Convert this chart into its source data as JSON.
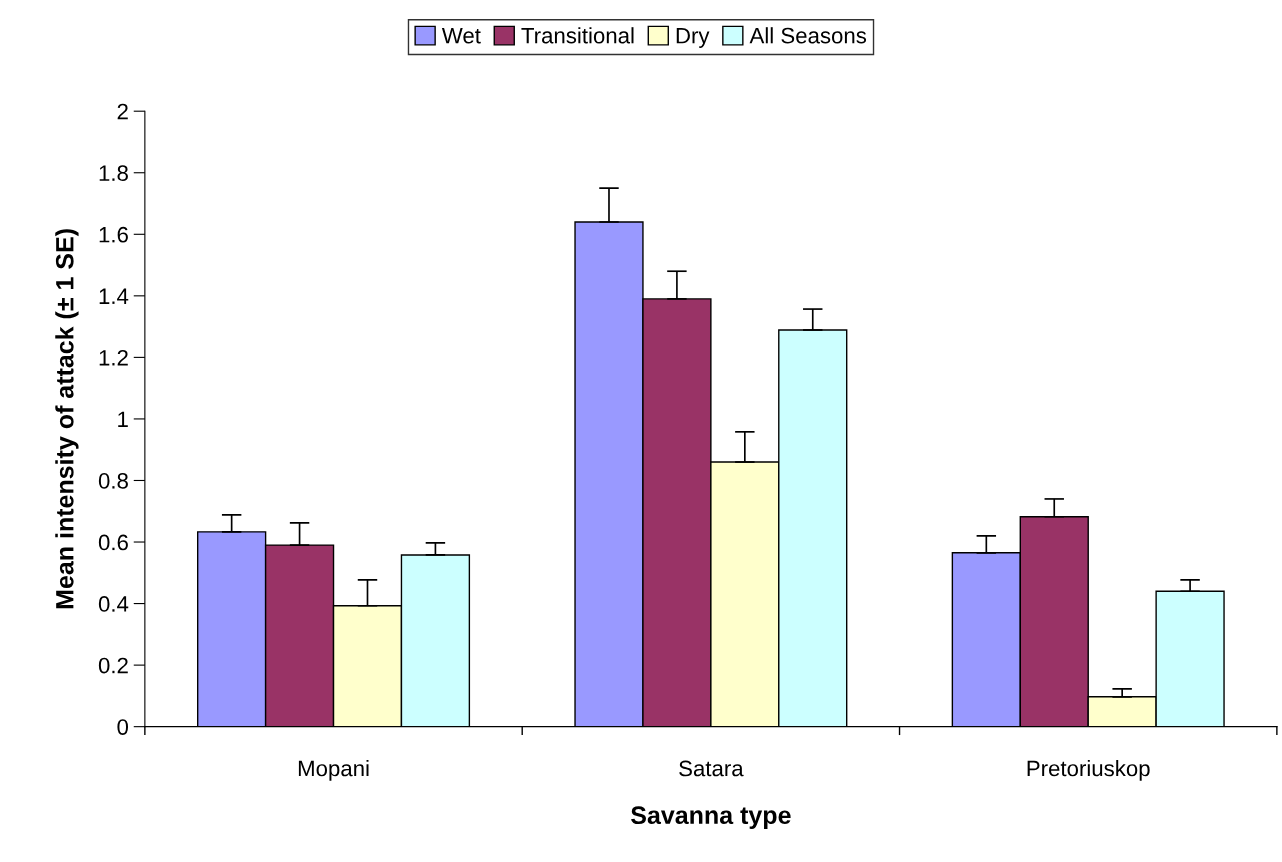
{
  "chart_data": {
    "type": "bar",
    "xlabel": "Savanna type",
    "ylabel": "Mean intensity of attack (± 1 SE)",
    "categories": [
      "Mopani",
      "Satara",
      "Pretoriuskop"
    ],
    "series": [
      {
        "name": "Wet",
        "color": "#9999ff",
        "values": [
          0.633,
          1.64,
          0.565
        ],
        "errors": [
          [
            0.633,
            0.688
          ],
          [
            1.64,
            1.75
          ],
          [
            0.565,
            0.62
          ]
        ]
      },
      {
        "name": "Transitional",
        "color": "#993366",
        "values": [
          0.59,
          1.39,
          0.682
        ],
        "errors": [
          [
            0.59,
            0.662
          ],
          [
            1.39,
            1.48
          ],
          [
            0.682,
            0.74
          ]
        ]
      },
      {
        "name": "Dry",
        "color": "#ffffcc",
        "values": [
          0.393,
          0.86,
          0.097
        ],
        "errors": [
          [
            0.393,
            0.477
          ],
          [
            0.86,
            0.958
          ],
          [
            0.097,
            0.123
          ]
        ]
      },
      {
        "name": "All Seasons",
        "color": "#ccffff",
        "values": [
          0.558,
          1.289,
          0.44
        ],
        "errors": [
          [
            0.558,
            0.597
          ],
          [
            1.289,
            1.357
          ],
          [
            0.44,
            0.477
          ]
        ]
      }
    ],
    "ylim": [
      0,
      2
    ],
    "yticks": [
      0,
      0.2,
      0.4,
      0.6,
      0.8,
      1,
      1.2,
      1.4,
      1.6,
      1.8,
      2
    ],
    "grid": false,
    "legend": "top"
  }
}
